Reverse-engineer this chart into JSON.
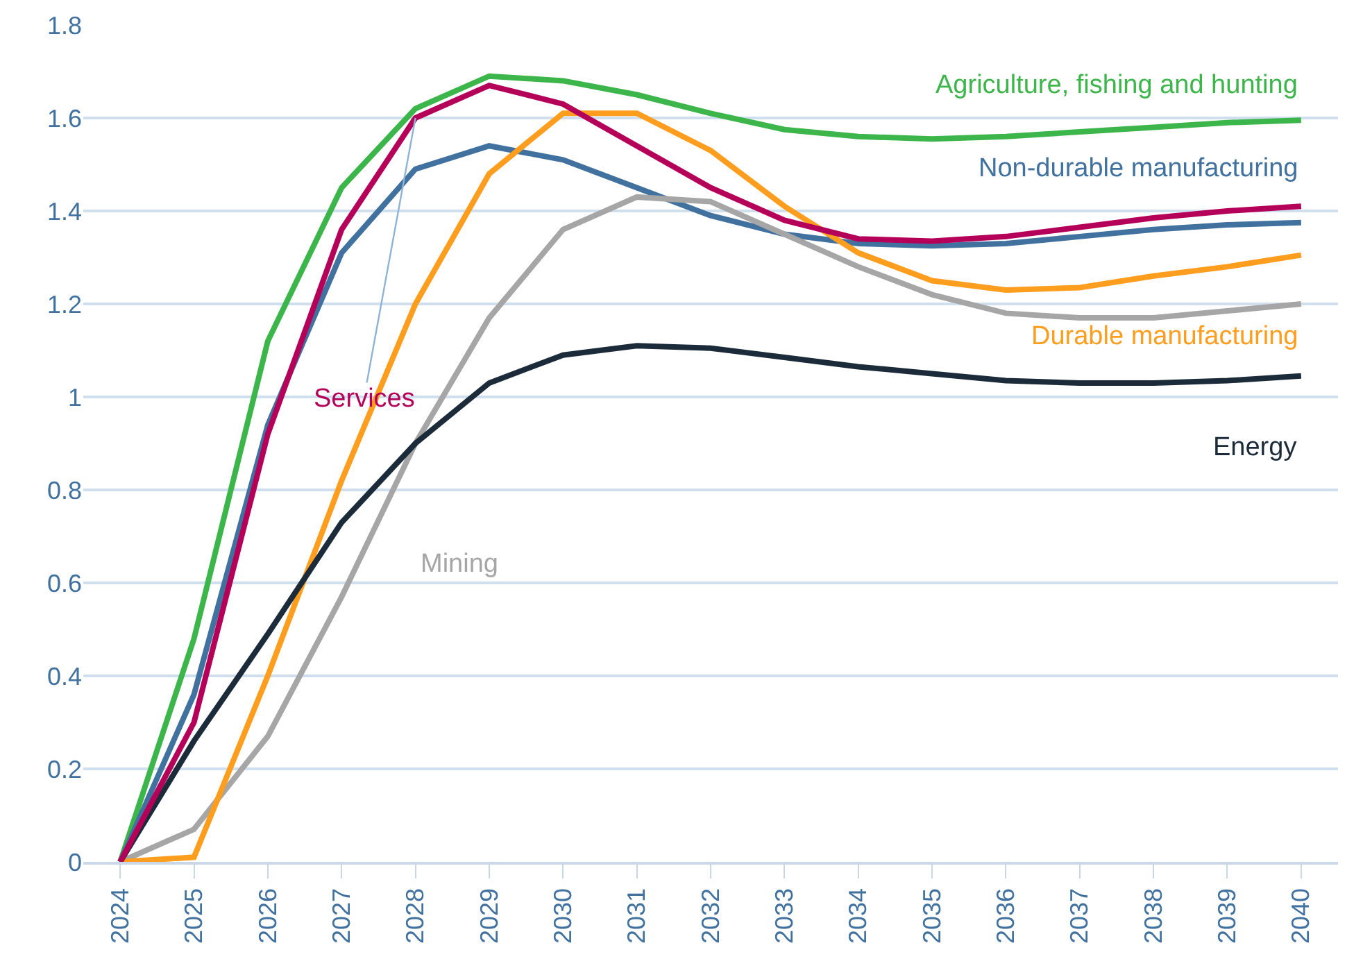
{
  "chart_data": {
    "type": "line",
    "categories": [
      "2024",
      "2025",
      "2026",
      "2027",
      "2028",
      "2029",
      "2030",
      "2031",
      "2032",
      "2033",
      "2034",
      "2035",
      "2036",
      "2037",
      "2038",
      "2039",
      "2040"
    ],
    "ylim": [
      0,
      1.8
    ],
    "yticks": [
      0,
      0.2,
      0.4,
      0.6,
      0.8,
      1,
      1.2,
      1.4,
      1.6,
      1.8
    ],
    "grid": "y",
    "legend": false,
    "marker": "none",
    "line_style": "solid",
    "series": [
      {
        "name": "Agriculture, fishing and hunting",
        "color": "#3cb54a",
        "values": [
          0,
          0.48,
          1.12,
          1.45,
          1.62,
          1.69,
          1.68,
          1.65,
          1.61,
          1.575,
          1.56,
          1.555,
          1.56,
          1.57,
          1.58,
          1.59,
          1.595
        ]
      },
      {
        "name": "Non-durable manufacturing",
        "color": "#41729f",
        "values": [
          0,
          0.36,
          0.94,
          1.31,
          1.49,
          1.54,
          1.51,
          1.45,
          1.39,
          1.35,
          1.33,
          1.325,
          1.33,
          1.345,
          1.36,
          1.37,
          1.375
        ]
      },
      {
        "name": "Mining",
        "color": "#a6a6a6",
        "values": [
          0,
          0.07,
          0.27,
          0.57,
          0.9,
          1.17,
          1.36,
          1.43,
          1.42,
          1.35,
          1.28,
          1.22,
          1.18,
          1.17,
          1.17,
          1.185,
          1.2
        ]
      },
      {
        "name": "Durable manufacturing",
        "color": "#ff9d1e",
        "values": [
          0,
          0.01,
          0.4,
          0.82,
          1.2,
          1.48,
          1.61,
          1.61,
          1.53,
          1.41,
          1.31,
          1.25,
          1.23,
          1.235,
          1.26,
          1.28,
          1.305
        ]
      },
      {
        "name": "Energy",
        "color": "#1c2b39",
        "values": [
          0,
          0.26,
          0.49,
          0.73,
          0.9,
          1.03,
          1.09,
          1.11,
          1.105,
          1.085,
          1.065,
          1.05,
          1.035,
          1.03,
          1.03,
          1.035,
          1.045
        ]
      },
      {
        "name": "Services",
        "color": "#b5005a",
        "values": [
          0,
          0.3,
          0.92,
          1.36,
          1.6,
          1.67,
          1.63,
          1.54,
          1.45,
          1.38,
          1.34,
          1.335,
          1.345,
          1.365,
          1.385,
          1.4,
          1.41
        ]
      }
    ]
  }
}
